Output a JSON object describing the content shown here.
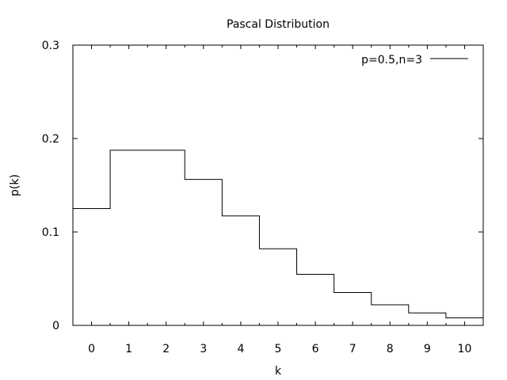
{
  "chart_data": {
    "type": "line",
    "step": "center",
    "title": "Pascal Distribution",
    "xlabel": "k",
    "ylabel": "p(k)",
    "xlim": [
      -0.5,
      10.5
    ],
    "ylim": [
      0,
      0.3
    ],
    "xticks": [
      0,
      1,
      2,
      3,
      4,
      5,
      6,
      7,
      8,
      9,
      10
    ],
    "yticks": [
      0,
      0.1,
      0.2,
      0.3
    ],
    "ytick_labels": [
      "0",
      "0.1",
      "0.2",
      "0.3"
    ],
    "grid": false,
    "legend_position": "top-right",
    "series": [
      {
        "name": "p=0.5,n=3",
        "color": "#000000",
        "x": [
          0,
          1,
          2,
          3,
          4,
          5,
          6,
          7,
          8,
          9,
          10
        ],
        "values": [
          0.125,
          0.1875,
          0.1875,
          0.15625,
          0.1172,
          0.082,
          0.0547,
          0.0352,
          0.022,
          0.0134,
          0.0081
        ]
      }
    ]
  }
}
